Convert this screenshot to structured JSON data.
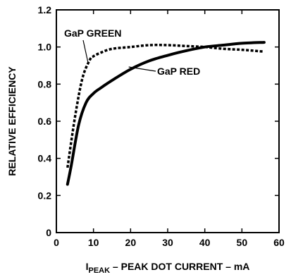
{
  "chart_data": {
    "type": "line",
    "title": "",
    "xlabel": {
      "prefix": "I",
      "subscript": "PEAK",
      "suffix": " – PEAK DOT CURRENT – mA"
    },
    "ylabel": "RELATIVE EFFICIENCY",
    "xlim": [
      0,
      60
    ],
    "ylim": [
      0,
      1.2
    ],
    "xticks": [
      0,
      10,
      20,
      30,
      40,
      50,
      60
    ],
    "yticks": [
      0,
      0.2,
      0.4,
      0.6,
      0.8,
      1.0,
      1.2
    ],
    "ytick_labels": [
      "0",
      "0.2",
      "0.4",
      "0.6",
      "0.8",
      "1.0",
      "1.2"
    ],
    "grid": false,
    "series": [
      {
        "name": "GaP GREEN",
        "style": "dotted",
        "color": "#000000",
        "points": [
          [
            3,
            0.35
          ],
          [
            5,
            0.62
          ],
          [
            7,
            0.83
          ],
          [
            9,
            0.93
          ],
          [
            10,
            0.95
          ],
          [
            12,
            0.97
          ],
          [
            15,
            0.99
          ],
          [
            20,
            1.0
          ],
          [
            25,
            1.01
          ],
          [
            30,
            1.01
          ],
          [
            35,
            1.005
          ],
          [
            40,
            1.0
          ],
          [
            45,
            0.99
          ],
          [
            50,
            0.985
          ],
          [
            56,
            0.975
          ]
        ]
      },
      {
        "name": "GaP RED",
        "style": "solid",
        "color": "#000000",
        "points": [
          [
            3,
            0.26
          ],
          [
            4,
            0.36
          ],
          [
            6,
            0.58
          ],
          [
            8,
            0.7
          ],
          [
            10,
            0.75
          ],
          [
            12,
            0.78
          ],
          [
            15,
            0.82
          ],
          [
            20,
            0.88
          ],
          [
            25,
            0.925
          ],
          [
            30,
            0.955
          ],
          [
            35,
            0.98
          ],
          [
            40,
            1.0
          ],
          [
            45,
            1.01
          ],
          [
            50,
            1.02
          ],
          [
            56,
            1.025
          ]
        ]
      }
    ],
    "annotations": [
      {
        "text": "GaP GREEN",
        "series": "GaP GREEN"
      },
      {
        "text": "GaP RED",
        "series": "GaP RED"
      }
    ]
  }
}
